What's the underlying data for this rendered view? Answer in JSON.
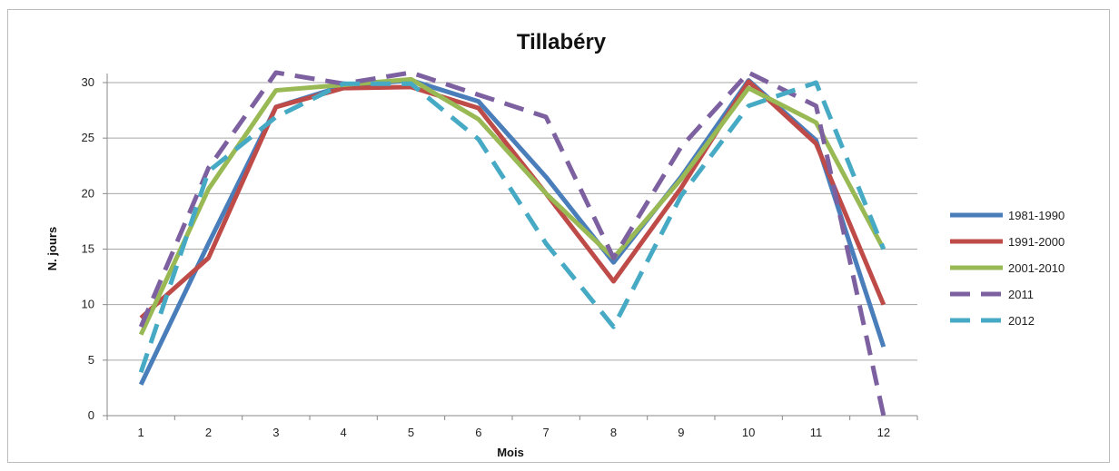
{
  "chart_data": {
    "type": "line",
    "title": "Tillabéry",
    "xlabel": "Mois",
    "ylabel": "N. jours",
    "x": [
      1,
      2,
      3,
      4,
      5,
      6,
      7,
      8,
      9,
      10,
      11,
      12
    ],
    "ylim": [
      0,
      30
    ],
    "yticks": [
      0,
      5,
      10,
      15,
      20,
      25,
      30
    ],
    "grid": "horizontal",
    "legend_position": "right",
    "series": [
      {
        "name": "1981-1990",
        "color": "#4a7ebb",
        "dash": false,
        "values": [
          2.8,
          15.5,
          27.8,
          29.7,
          30.2,
          28.3,
          21.5,
          13.8,
          21.5,
          30.2,
          24.8,
          6.2
        ]
      },
      {
        "name": "1991-2000",
        "color": "#be4b48",
        "dash": false,
        "values": [
          8.8,
          14.2,
          27.8,
          29.5,
          29.6,
          27.7,
          20.0,
          12.1,
          20.5,
          30.1,
          24.5,
          10.0
        ]
      },
      {
        "name": "2001-2010",
        "color": "#98b954",
        "dash": false,
        "values": [
          7.3,
          20.4,
          29.3,
          29.8,
          30.3,
          26.7,
          20.0,
          14.2,
          21.3,
          29.5,
          26.4,
          15.0
        ]
      },
      {
        "name": "2011",
        "color": "#7d60a0",
        "dash": true,
        "values": [
          8.0,
          22.3,
          30.9,
          29.9,
          30.9,
          28.9,
          26.9,
          14.2,
          24.2,
          30.9,
          27.9,
          0.0
        ]
      },
      {
        "name": "2012",
        "color": "#46aac5",
        "dash": true,
        "values": [
          3.9,
          22.0,
          26.9,
          29.9,
          29.9,
          24.9,
          15.5,
          8.0,
          19.8,
          27.9,
          30.0,
          15.0
        ]
      }
    ]
  }
}
